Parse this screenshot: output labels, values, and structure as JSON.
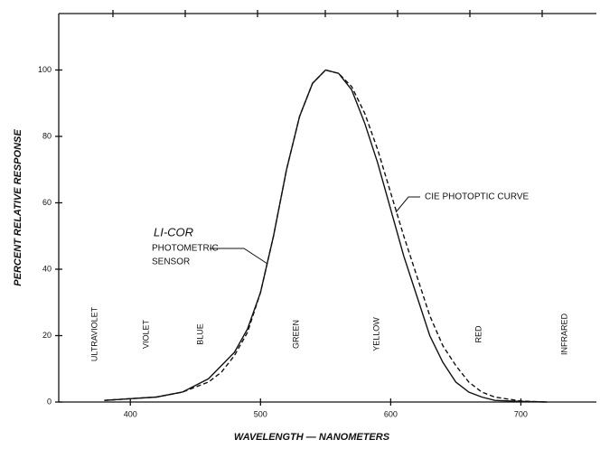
{
  "chart_data": {
    "type": "line",
    "xlabel": "WAVELENGTH — NANOMETERS",
    "ylabel": "PERCENT RELATIVE RESPONSE",
    "x": [
      380,
      400,
      420,
      440,
      460,
      470,
      480,
      490,
      500,
      510,
      520,
      530,
      540,
      550,
      560,
      570,
      580,
      590,
      600,
      610,
      620,
      630,
      640,
      650,
      660,
      670,
      680,
      700,
      720
    ],
    "series": [
      {
        "name": "LI-COR",
        "color": "#111111",
        "dash": false,
        "values": [
          0.5,
          1,
          1.5,
          3,
          7,
          11,
          15,
          22,
          33,
          50,
          70,
          86,
          96,
          100,
          99,
          94,
          84,
          72,
          58,
          44,
          32,
          20,
          12,
          6,
          3,
          1.5,
          0.5,
          0.2,
          0
        ]
      },
      {
        "name": "CIE PHOTOPTIC CURVE",
        "color": "#111111",
        "dash": true,
        "values": [
          0.5,
          1,
          1.5,
          3,
          6,
          9,
          14,
          21,
          33,
          50,
          70,
          86,
          96,
          100,
          99,
          95,
          87,
          76,
          63,
          50,
          38,
          26,
          17,
          11,
          6,
          3,
          1.5,
          0.3,
          0
        ]
      }
    ],
    "annotations": [
      "PHOTOMETRIC",
      "SENSOR"
    ],
    "bands": [
      "ULTRAVIOLET",
      "VIOLET",
      "BLUE",
      "GREEN",
      "YELLOW",
      "RED",
      "INFRARED"
    ],
    "xlim": [
      345,
      758
    ],
    "ylim": [
      0,
      117
    ],
    "xticks": [
      400,
      500,
      600,
      700
    ],
    "yticks": [
      0,
      20,
      40,
      60,
      80,
      100
    ]
  }
}
